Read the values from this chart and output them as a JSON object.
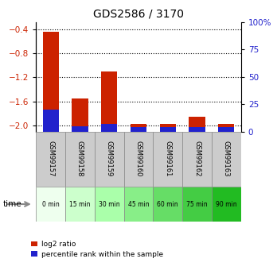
{
  "title": "GDS2586 / 3170",
  "samples": [
    "GSM99157",
    "GSM99158",
    "GSM99159",
    "GSM99160",
    "GSM99161",
    "GSM99162",
    "GSM99163"
  ],
  "time_labels": [
    "0 min",
    "15 min",
    "30 min",
    "45 min",
    "60 min",
    "75 min",
    "90 min"
  ],
  "time_colors": [
    "#eeffee",
    "#ccffcc",
    "#aaffaa",
    "#88ee88",
    "#66dd66",
    "#44cc44",
    "#22bb22"
  ],
  "log2_ratio": [
    -0.45,
    -1.55,
    -1.1,
    -1.97,
    -1.97,
    -1.85,
    -1.97
  ],
  "percentile_rank": [
    20,
    5,
    7,
    4,
    4,
    4,
    4
  ],
  "ylim_left": [
    -2.1,
    -0.28
  ],
  "ylim_right": [
    -2.1,
    -0.28
  ],
  "yticks_left": [
    -2.0,
    -1.6,
    -1.2,
    -0.8,
    -0.4
  ],
  "yticks_right_vals": [
    0,
    25,
    50,
    75,
    100
  ],
  "yticks_right_labels": [
    "0",
    "25",
    "50",
    "75",
    "100%"
  ],
  "red_color": "#cc2200",
  "blue_color": "#2222cc",
  "gray_bg": "#cccccc",
  "legend_red": "log2 ratio",
  "legend_blue": "percentile rank within the sample",
  "bar_width": 0.55
}
